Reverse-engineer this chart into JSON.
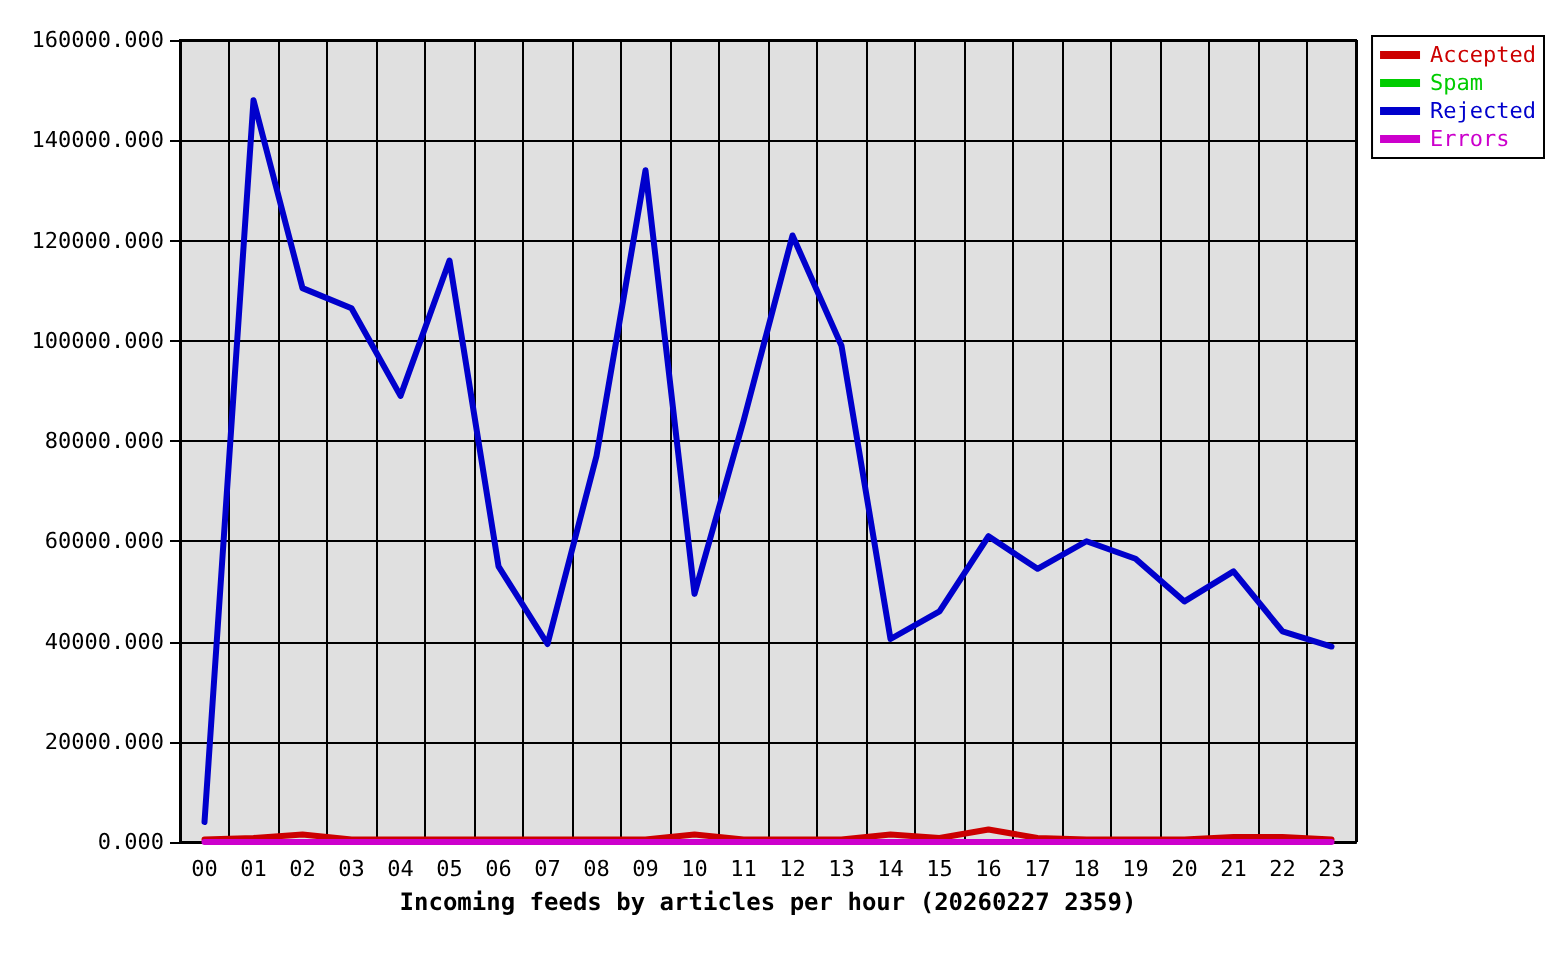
{
  "chart_data": {
    "type": "line",
    "xlabel": "Incoming feeds by articles per hour (20260227 2359)",
    "categories": [
      "00",
      "01",
      "02",
      "03",
      "04",
      "05",
      "06",
      "07",
      "08",
      "09",
      "10",
      "11",
      "12",
      "13",
      "14",
      "15",
      "16",
      "17",
      "18",
      "19",
      "20",
      "21",
      "22",
      "23"
    ],
    "series": [
      {
        "name": "Accepted",
        "color": "#cc0000",
        "values": [
          500,
          800,
          1500,
          500,
          500,
          500,
          500,
          500,
          500,
          500,
          1500,
          500,
          500,
          500,
          1500,
          800,
          2500,
          800,
          500,
          500,
          500,
          1000,
          1000,
          500
        ]
      },
      {
        "name": "Spam",
        "color": "#00cc00",
        "values": [
          null,
          null,
          null,
          null,
          null,
          null,
          null,
          null,
          null,
          null,
          null,
          null,
          null,
          null,
          null,
          null,
          null,
          null,
          null,
          null,
          null,
          null,
          null,
          null
        ]
      },
      {
        "name": "Rejected",
        "color": "#0000cc",
        "values": [
          4000,
          148000,
          110500,
          106500,
          89000,
          116000,
          55000,
          39500,
          77000,
          134000,
          49500,
          84000,
          121000,
          99000,
          40500,
          46000,
          61000,
          54500,
          60000,
          56500,
          48000,
          54000,
          42000,
          39000
        ]
      },
      {
        "name": "Errors",
        "color": "#cc00cc",
        "values": [
          0,
          0,
          0,
          0,
          0,
          0,
          0,
          0,
          0,
          0,
          0,
          0,
          0,
          0,
          0,
          0,
          0,
          0,
          0,
          0,
          0,
          0,
          0,
          0
        ]
      }
    ],
    "ylim": [
      0,
      160000
    ],
    "yticks": [
      {
        "value": 0,
        "label": "0.000"
      },
      {
        "value": 20000,
        "label": "20000.000"
      },
      {
        "value": 40000,
        "label": "40000.000"
      },
      {
        "value": 60000,
        "label": "60000.000"
      },
      {
        "value": 80000,
        "label": "80000.000"
      },
      {
        "value": 100000,
        "label": "100000.000"
      },
      {
        "value": 120000,
        "label": "120000.000"
      },
      {
        "value": 140000,
        "label": "140000.000"
      },
      {
        "value": 160000,
        "label": "160000.000"
      }
    ],
    "grid": true,
    "legend": "top right",
    "marker": "none",
    "line_style": "solid"
  }
}
